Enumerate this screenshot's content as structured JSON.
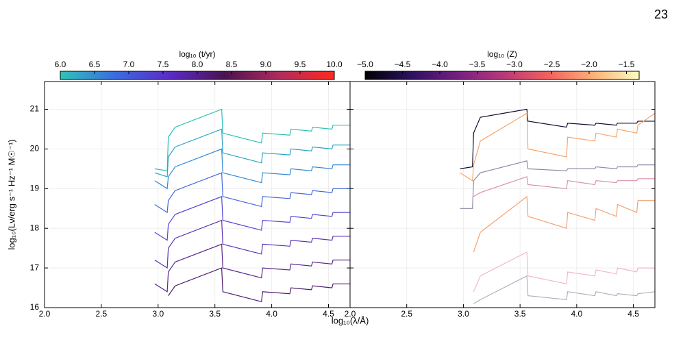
{
  "page_number": "23",
  "chart_data": [
    {
      "type": "line",
      "xlabel": "log₁₀(λ/Å)",
      "ylabel": "log₁₀(Lν/erg s⁻¹ Hz⁻¹ M☉⁻¹)",
      "xlim": [
        2.0,
        4.69
      ],
      "ylim": [
        16,
        21.7
      ],
      "xticks": [
        {
          "value": 2.0,
          "label": "2.0"
        },
        {
          "value": 2.5,
          "label": "2.5"
        },
        {
          "value": 3.0,
          "label": "3.0"
        },
        {
          "value": 3.5,
          "label": "3.5"
        },
        {
          "value": 4.0,
          "label": "4.0"
        },
        {
          "value": 4.5,
          "label": "4.5"
        }
      ],
      "yticks": [
        16,
        17,
        18,
        19,
        20,
        21
      ],
      "grid": true,
      "colorbar": {
        "label": "log₁₀ (t/yr)",
        "lim": [
          6.0,
          10.0
        ],
        "colors": [
          "#2ec4b6",
          "#3b6be0",
          "#5a2bc8",
          "#4a1450",
          "#b02a5e",
          "#ff2a1e"
        ],
        "ticks": [
          {
            "value": 6.0,
            "label": "6.0"
          },
          {
            "value": 6.5,
            "label": "6.5"
          },
          {
            "value": 7.0,
            "label": "7.0"
          },
          {
            "value": 7.5,
            "label": "7.5"
          },
          {
            "value": 8.0,
            "label": "8.0"
          },
          {
            "value": 8.5,
            "label": "8.5"
          },
          {
            "value": 9.0,
            "label": "9.0"
          },
          {
            "value": 9.5,
            "label": "9.5"
          },
          {
            "value": 10.0,
            "label": "10.0"
          }
        ]
      },
      "x": [
        2.97,
        3.08,
        3.09,
        3.15,
        3.56,
        3.57,
        3.91,
        3.92,
        4.16,
        4.17,
        4.35,
        4.36,
        4.53,
        4.54,
        4.69
      ],
      "series": [
        {
          "color": "#2bbfb5",
          "values": [
            19.5,
            19.45,
            20.3,
            20.55,
            21.0,
            20.4,
            20.15,
            20.4,
            20.35,
            20.5,
            20.45,
            20.55,
            20.5,
            20.6,
            20.6
          ]
        },
        {
          "color": "#2aa4c8",
          "values": [
            19.4,
            19.3,
            19.8,
            20.05,
            20.5,
            19.9,
            19.65,
            19.9,
            19.85,
            20.0,
            19.95,
            20.05,
            20.0,
            20.1,
            20.1
          ]
        },
        {
          "color": "#3388d8",
          "values": [
            19.2,
            19.0,
            19.3,
            19.55,
            20.0,
            19.4,
            19.15,
            19.4,
            19.35,
            19.5,
            19.45,
            19.55,
            19.5,
            19.6,
            19.6
          ]
        },
        {
          "color": "#3f66e0",
          "values": [
            18.6,
            18.4,
            18.7,
            18.95,
            19.4,
            18.8,
            18.55,
            18.8,
            18.75,
            18.9,
            18.85,
            18.95,
            18.9,
            19.0,
            19.0
          ]
        },
        {
          "color": "#5146d8",
          "values": [
            17.9,
            17.7,
            18.1,
            18.35,
            18.8,
            18.2,
            17.95,
            18.2,
            18.15,
            18.3,
            18.25,
            18.35,
            18.3,
            18.4,
            18.4
          ]
        },
        {
          "color": "#5a2fb8",
          "values": [
            17.2,
            17.0,
            17.5,
            17.75,
            18.2,
            17.6,
            17.35,
            17.6,
            17.55,
            17.7,
            17.65,
            17.75,
            17.7,
            17.8,
            17.8
          ]
        },
        {
          "color": "#5a2590",
          "values": [
            16.6,
            16.4,
            16.9,
            17.15,
            17.6,
            17.0,
            16.75,
            17.0,
            16.95,
            17.1,
            17.05,
            17.15,
            17.1,
            17.2,
            17.2
          ]
        },
        {
          "color": "#4b1a6e",
          "values": [
            null,
            null,
            16.3,
            16.55,
            17.0,
            16.4,
            16.15,
            16.4,
            16.35,
            16.5,
            16.45,
            16.55,
            16.5,
            16.6,
            16.6
          ]
        }
      ]
    },
    {
      "type": "line",
      "xlim": [
        2.0,
        4.69
      ],
      "ylim": [
        16,
        21.7
      ],
      "xticks": [
        {
          "value": 2.0,
          "label": "2.0"
        },
        {
          "value": 2.5,
          "label": "2.5"
        },
        {
          "value": 3.0,
          "label": "3.0"
        },
        {
          "value": 3.5,
          "label": "3.5"
        },
        {
          "value": 4.0,
          "label": "4.0"
        },
        {
          "value": 4.5,
          "label": "4.5"
        }
      ],
      "yticks": [
        16,
        17,
        18,
        19,
        20,
        21
      ],
      "grid": true,
      "colorbar": {
        "label": "log₁₀ (Z)",
        "lim": [
          -5.0,
          -1.33
        ],
        "colors": [
          "#000004",
          "#2c115f",
          "#721f81",
          "#b73779",
          "#f1605d",
          "#feb078",
          "#fcfdbf"
        ],
        "ticks": [
          {
            "value": -5.0,
            "label": "−5.0"
          },
          {
            "value": -4.5,
            "label": "−4.5"
          },
          {
            "value": -4.0,
            "label": "−4.0"
          },
          {
            "value": -3.5,
            "label": "−3.5"
          },
          {
            "value": -3.0,
            "label": "−3.0"
          },
          {
            "value": -2.5,
            "label": "−2.5"
          },
          {
            "value": -2.0,
            "label": "−2.0"
          },
          {
            "value": -1.5,
            "label": "−1.5"
          }
        ]
      },
      "x": [
        2.97,
        3.08,
        3.09,
        3.15,
        3.56,
        3.57,
        3.91,
        3.92,
        4.16,
        4.17,
        4.35,
        4.36,
        4.53,
        4.54,
        4.69
      ],
      "series": [
        {
          "color": "#0b0b2e",
          "values": [
            19.5,
            19.55,
            20.4,
            20.8,
            21.0,
            20.7,
            20.55,
            20.65,
            20.6,
            20.65,
            20.6,
            20.65,
            20.65,
            20.7,
            20.7
          ]
        },
        {
          "color": "#f6a46a",
          "values": [
            19.4,
            19.2,
            19.6,
            20.2,
            20.9,
            20.0,
            19.8,
            20.3,
            20.2,
            20.4,
            20.3,
            20.5,
            20.4,
            20.6,
            20.9
          ]
        },
        {
          "color": "#8a8aa6",
          "values": [
            18.5,
            18.5,
            19.2,
            19.4,
            19.7,
            19.5,
            19.45,
            19.5,
            19.5,
            19.55,
            19.5,
            19.55,
            19.55,
            19.6,
            19.6
          ]
        },
        {
          "color": "#d890a8",
          "values": [
            null,
            null,
            18.8,
            18.9,
            19.3,
            19.1,
            19.0,
            19.2,
            19.1,
            19.2,
            19.15,
            19.2,
            19.2,
            19.25,
            19.25
          ]
        },
        {
          "color": "#f4a070",
          "values": [
            null,
            null,
            17.4,
            17.9,
            18.8,
            18.3,
            18.0,
            18.4,
            18.2,
            18.5,
            18.3,
            18.6,
            18.4,
            18.7,
            18.7
          ]
        },
        {
          "color": "#f2b8c4",
          "values": [
            null,
            null,
            16.4,
            16.8,
            17.4,
            16.8,
            16.6,
            16.9,
            16.8,
            16.95,
            16.85,
            17.0,
            16.9,
            17.0,
            17.0
          ]
        },
        {
          "color": "#b0b0c0",
          "values": [
            null,
            null,
            16.1,
            16.2,
            16.8,
            16.3,
            16.2,
            16.4,
            16.3,
            16.4,
            16.3,
            16.35,
            16.3,
            16.35,
            16.4
          ]
        }
      ]
    }
  ]
}
